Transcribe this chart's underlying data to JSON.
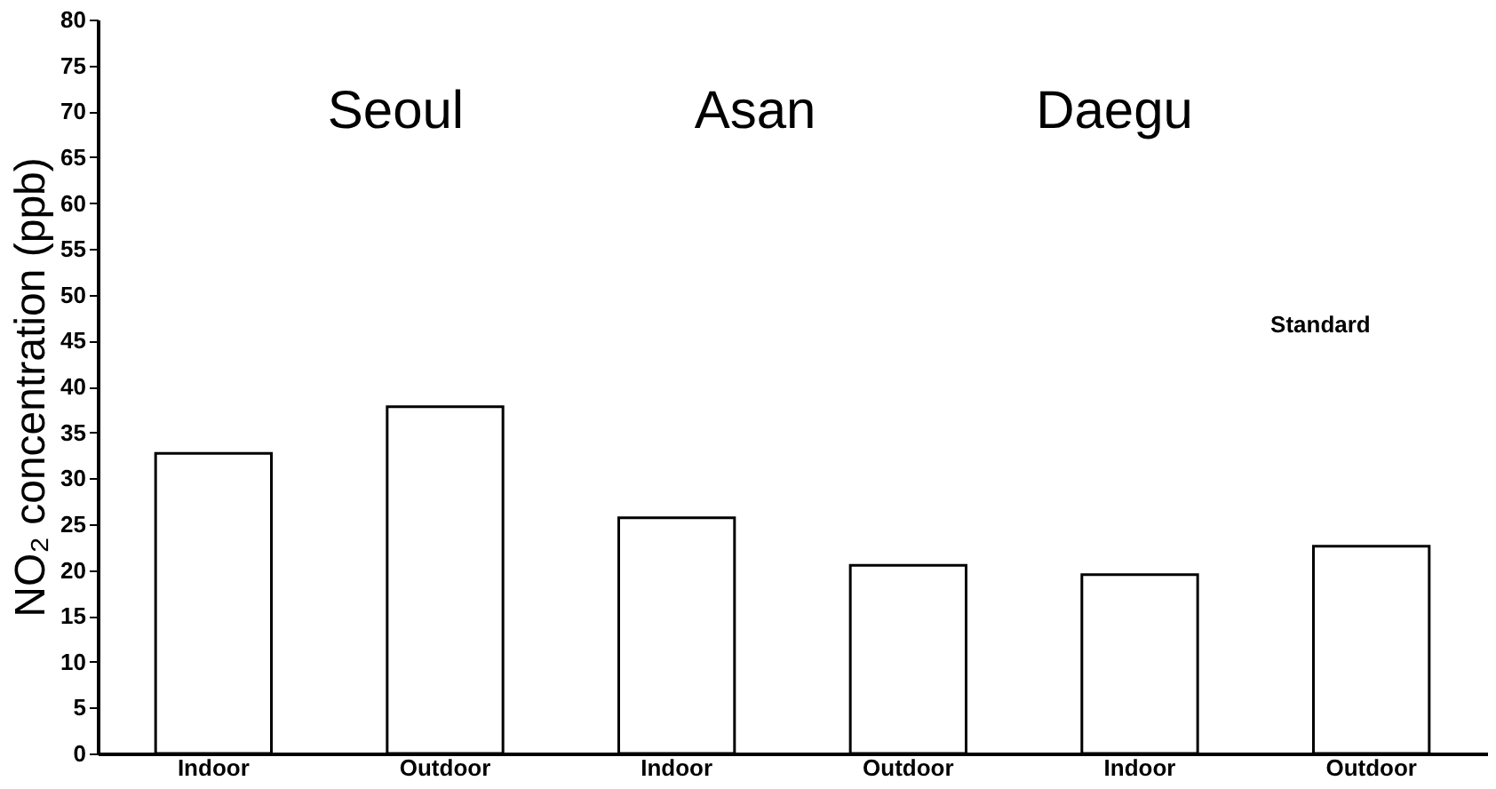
{
  "chart_data": {
    "type": "bar",
    "ylabel": "NO₂ concentration (ppb)",
    "categories": [
      "Indoor",
      "Outdoor",
      "Indoor",
      "Outdoor",
      "Indoor",
      "Outdoor"
    ],
    "values": [
      32.7,
      37.8,
      25.7,
      20.5,
      19.5,
      22.6
    ],
    "color": "#ffffff",
    "ylim": [
      0,
      80
    ],
    "yticks": [
      0,
      5,
      10,
      15,
      20,
      25,
      30,
      35,
      40,
      45,
      50,
      55,
      60,
      65,
      70,
      75,
      80
    ],
    "annotations": [
      "Seoul",
      "Asan",
      "Daegu",
      "Standard"
    ]
  }
}
